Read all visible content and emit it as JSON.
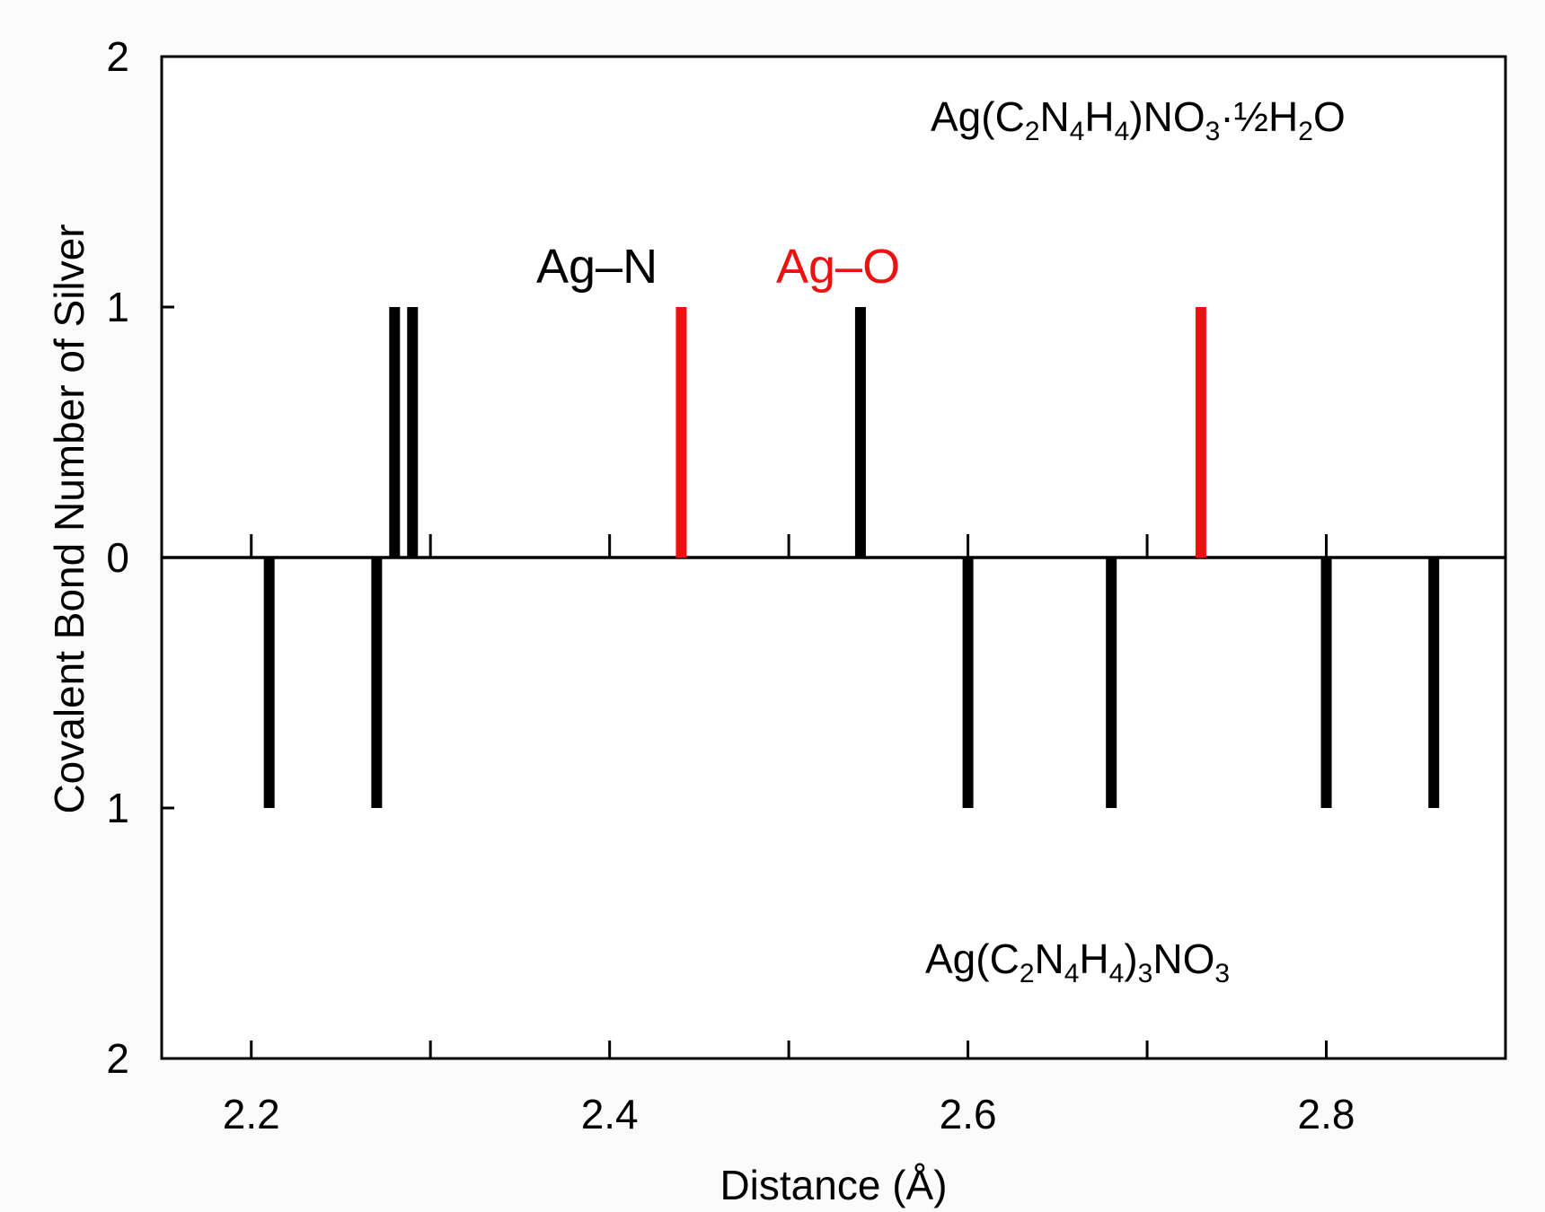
{
  "chart_data": {
    "type": "bar",
    "subtype": "mirrored stick spectrum",
    "xlabel": "Distance (Å)",
    "ylabel": "Covalent Bond Number of Silver",
    "xlim": [
      2.15,
      2.9
    ],
    "ylim": [
      -2,
      2
    ],
    "x_ticks_major": [
      2.2,
      2.4,
      2.6,
      2.8
    ],
    "x_ticks_minor": [
      2.3,
      2.5,
      2.7
    ],
    "x_tick_labels": [
      "2.2",
      "2.4",
      "2.6",
      "2.8"
    ],
    "y_tick_labels": [
      "2",
      "1",
      "0",
      "1",
      "2"
    ],
    "y_tick_values": [
      2,
      1,
      0,
      -1,
      -2
    ],
    "grid": false,
    "legend": [
      {
        "name": "Ag–N",
        "color": "#000000"
      },
      {
        "name": "Ag–O",
        "color": "#ee1111"
      }
    ],
    "series": [
      {
        "name": "Ag(C2N4H4)NO3·½H2O",
        "direction": "up",
        "bars": [
          {
            "x": 2.28,
            "value": 1,
            "type": "Ag–N"
          },
          {
            "x": 2.29,
            "value": 1,
            "type": "Ag–N"
          },
          {
            "x": 2.44,
            "value": 1,
            "type": "Ag–O"
          },
          {
            "x": 2.54,
            "value": 1,
            "type": "Ag–N"
          },
          {
            "x": 2.73,
            "value": 1,
            "type": "Ag–O"
          }
        ]
      },
      {
        "name": "Ag(C2N4H4)3NO3",
        "direction": "down",
        "bars": [
          {
            "x": 2.21,
            "value": 1,
            "type": "Ag–N"
          },
          {
            "x": 2.27,
            "value": 1,
            "type": "Ag–N"
          },
          {
            "x": 2.6,
            "value": 1,
            "type": "Ag–N"
          },
          {
            "x": 2.68,
            "value": 1,
            "type": "Ag–N"
          },
          {
            "x": 2.8,
            "value": 1,
            "type": "Ag–N"
          },
          {
            "x": 2.86,
            "value": 1,
            "type": "Ag–N"
          }
        ]
      }
    ],
    "compound_labels": {
      "top": {
        "main": "Ag(C",
        "s1": "2",
        "m2": "N",
        "s2": "4",
        "m3": "H",
        "s3": "4",
        "m4": ")NO",
        "s4": "3",
        "m5": "·½H",
        "s5": "2",
        "m6": "O"
      },
      "bottom": {
        "main": "Ag(C",
        "s1": "2",
        "m2": "N",
        "s2": "4",
        "m3": "H",
        "s3": "4",
        "m4": ")",
        "s4": "3",
        "m5": "NO",
        "s5": "3"
      }
    }
  }
}
